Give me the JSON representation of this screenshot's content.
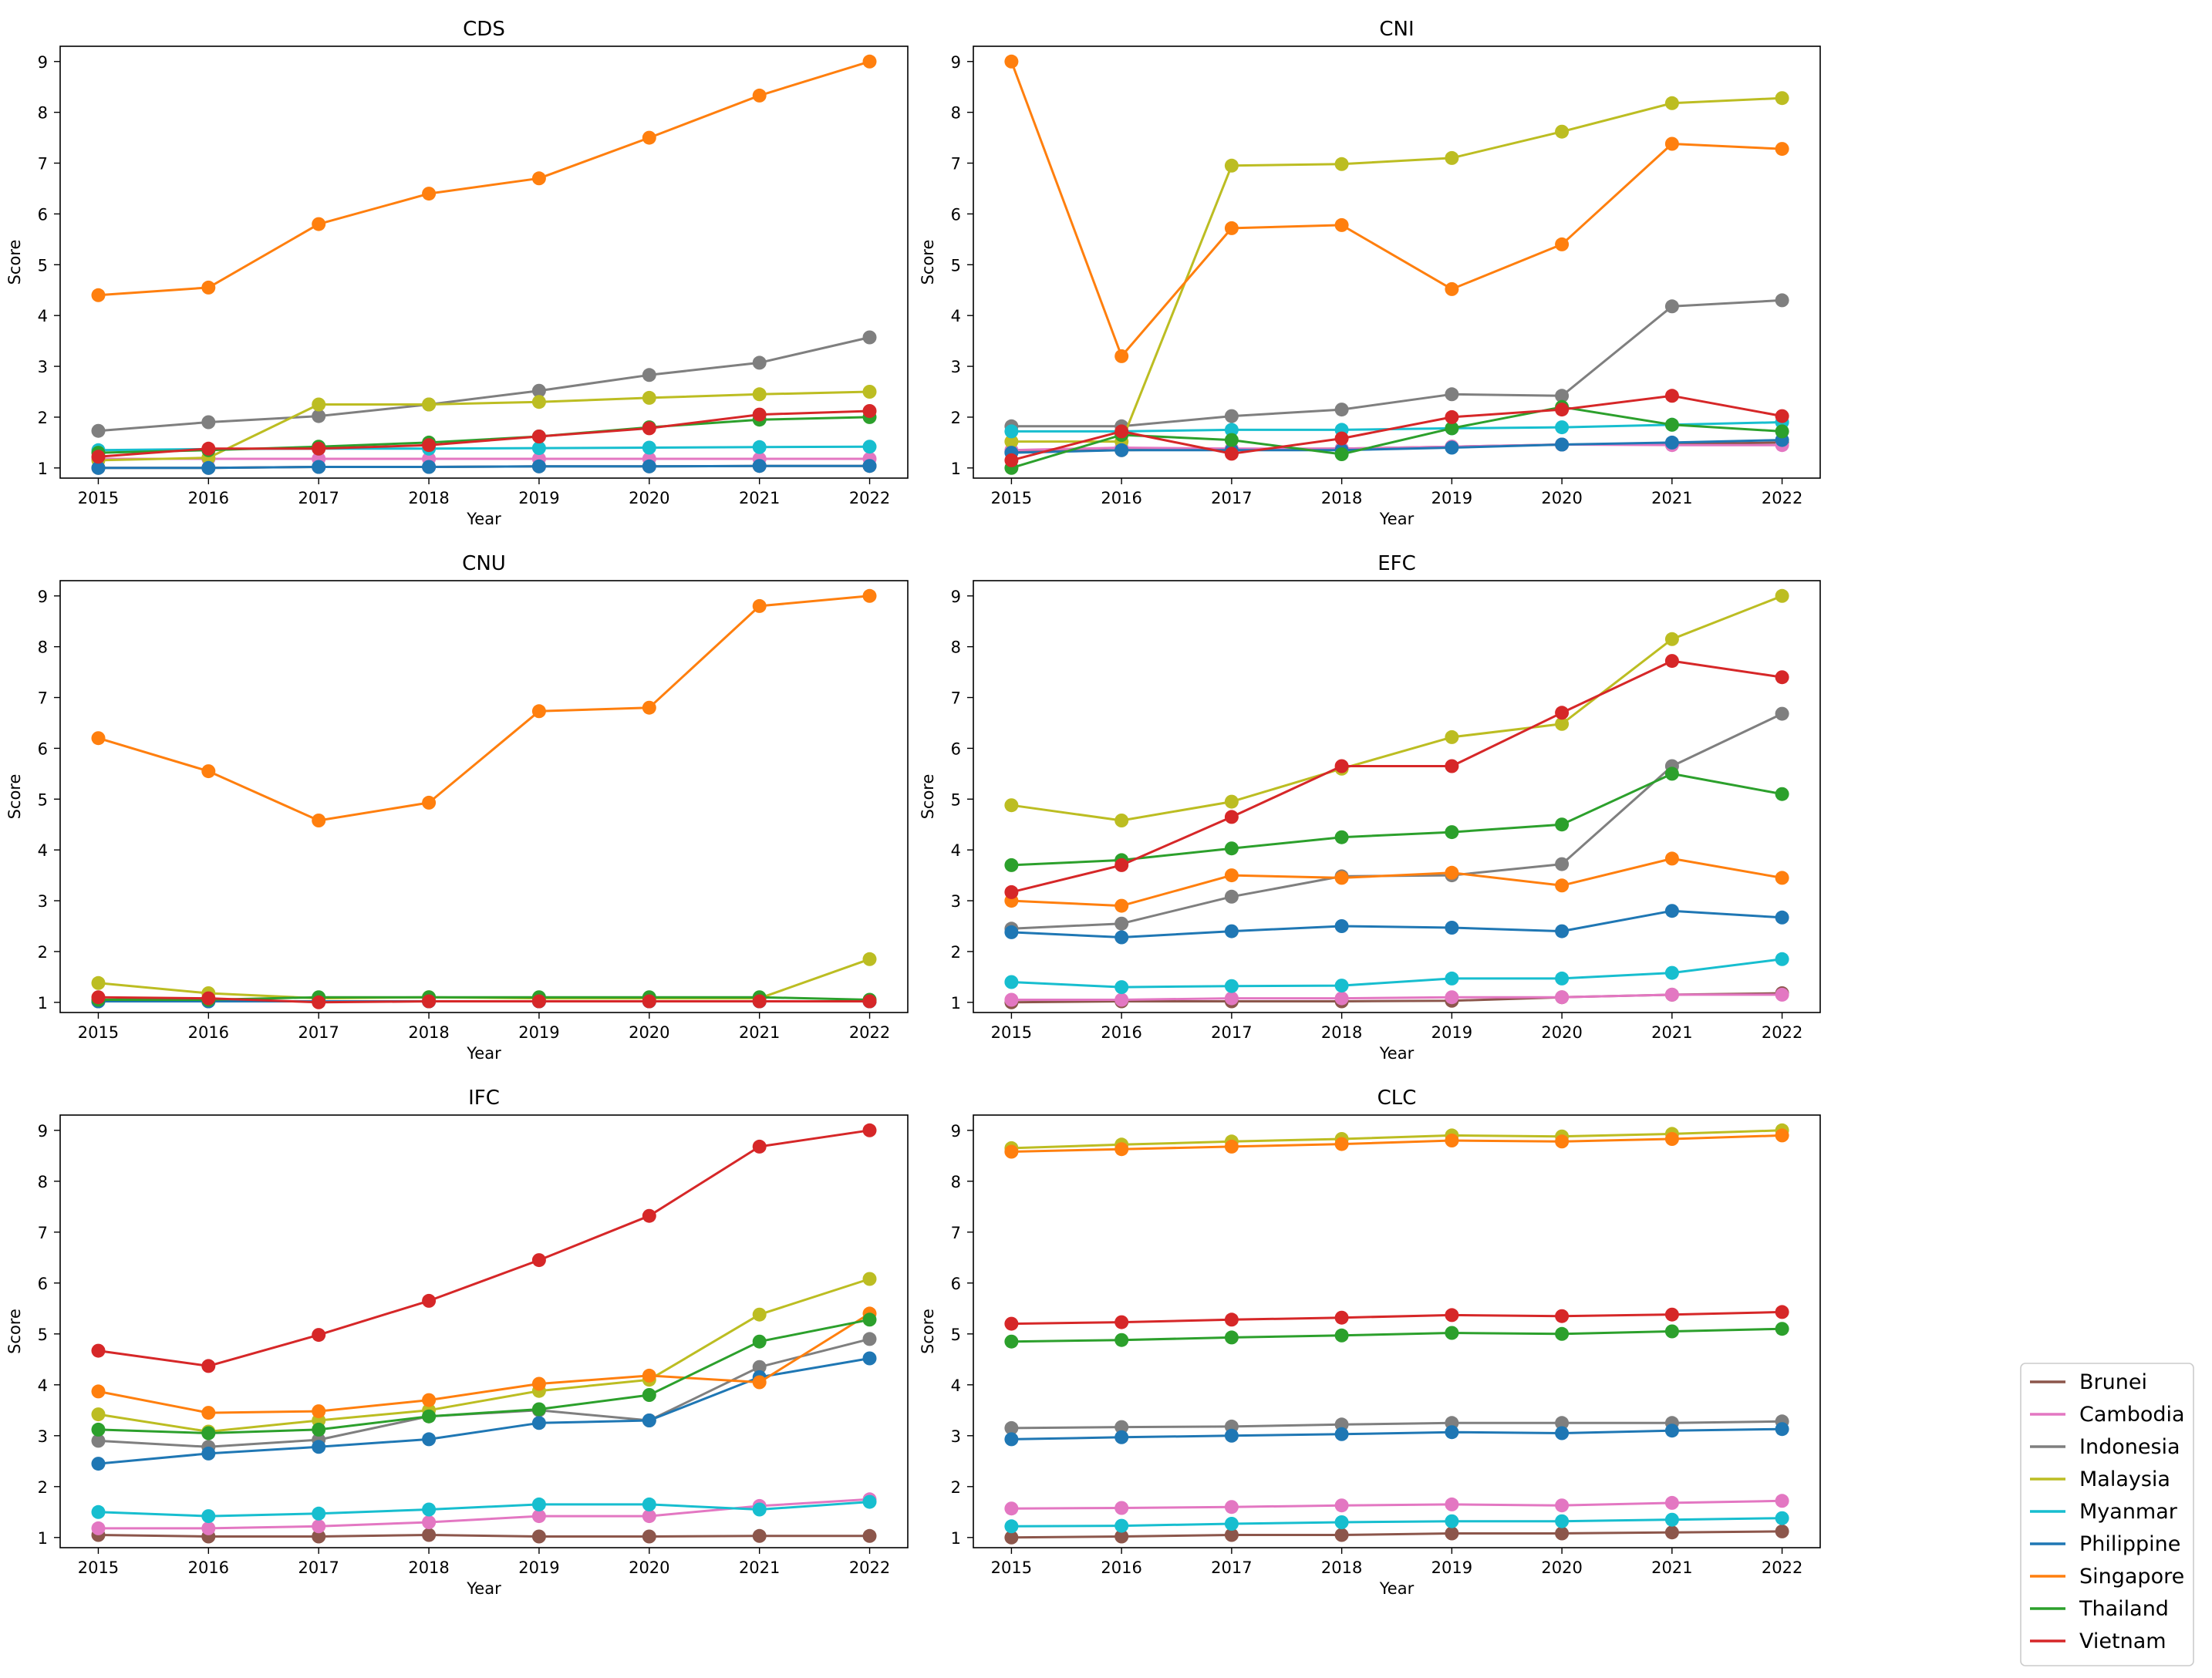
{
  "colors": {
    "Brunei": "#8c564b",
    "Cambodia": "#e377c2",
    "Indonesia": "#7f7f7f",
    "Malaysia": "#bcbd22",
    "Myanmar": "#17becf",
    "Philippine": "#1f77b4",
    "Singapore": "#ff7f0e",
    "Thailand": "#2ca02c",
    "Vietnam": "#d62728"
  },
  "legend": [
    "Brunei",
    "Cambodia",
    "Indonesia",
    "Malaysia",
    "Myanmar",
    "Philippine",
    "Singapore",
    "Thailand",
    "Vietnam"
  ],
  "chart_data": [
    {
      "type": "line",
      "title": "CDS",
      "xlabel": "Year",
      "ylabel": "Score",
      "x": [
        2015,
        2016,
        2017,
        2018,
        2019,
        2020,
        2021,
        2022
      ],
      "ylim": [
        0.8,
        9.3
      ],
      "yticks": [
        1,
        2,
        3,
        4,
        5,
        6,
        7,
        8,
        9
      ],
      "series": [
        {
          "name": "Brunei",
          "values": [
            1.0,
            1.0,
            1.02,
            1.02,
            1.03,
            1.03,
            1.04,
            1.04
          ]
        },
        {
          "name": "Cambodia",
          "values": [
            1.18,
            1.18,
            1.18,
            1.18,
            1.18,
            1.18,
            1.18,
            1.18
          ]
        },
        {
          "name": "Indonesia",
          "values": [
            1.73,
            1.9,
            2.02,
            2.25,
            2.52,
            2.83,
            3.07,
            3.57
          ]
        },
        {
          "name": "Malaysia",
          "values": [
            1.15,
            1.2,
            2.25,
            2.25,
            2.3,
            2.38,
            2.45,
            2.5
          ]
        },
        {
          "name": "Myanmar",
          "values": [
            1.35,
            1.37,
            1.38,
            1.38,
            1.39,
            1.4,
            1.41,
            1.42
          ]
        },
        {
          "name": "Philippine",
          "values": [
            1.0,
            1.0,
            1.02,
            1.02,
            1.03,
            1.03,
            1.04,
            1.04
          ]
        },
        {
          "name": "Singapore",
          "values": [
            4.4,
            4.55,
            5.8,
            6.4,
            6.7,
            7.5,
            8.33,
            9.0
          ]
        },
        {
          "name": "Thailand",
          "values": [
            1.3,
            1.35,
            1.42,
            1.5,
            1.62,
            1.8,
            1.95,
            2.0
          ]
        },
        {
          "name": "Vietnam",
          "values": [
            1.22,
            1.38,
            1.38,
            1.45,
            1.62,
            1.78,
            2.05,
            2.12
          ]
        }
      ]
    },
    {
      "type": "line",
      "title": "CNI",
      "xlabel": "Year",
      "ylabel": "Score",
      "x": [
        2015,
        2016,
        2017,
        2018,
        2019,
        2020,
        2021,
        2022
      ],
      "ylim": [
        0.8,
        9.3
      ],
      "yticks": [
        1,
        2,
        3,
        4,
        5,
        6,
        7,
        8,
        9
      ],
      "series": [
        {
          "name": "Brunei",
          "values": [
            1.32,
            1.35,
            1.37,
            1.38,
            1.42,
            1.46,
            1.47,
            1.5
          ]
        },
        {
          "name": "Cambodia",
          "values": [
            1.35,
            1.4,
            1.38,
            1.38,
            1.42,
            1.46,
            1.45,
            1.45
          ]
        },
        {
          "name": "Indonesia",
          "values": [
            1.82,
            1.82,
            2.02,
            2.15,
            2.45,
            2.42,
            4.18,
            4.3
          ]
        },
        {
          "name": "Malaysia",
          "values": [
            1.52,
            1.52,
            6.95,
            6.98,
            7.1,
            7.62,
            8.18,
            8.28
          ]
        },
        {
          "name": "Myanmar",
          "values": [
            1.72,
            1.72,
            1.75,
            1.75,
            1.78,
            1.8,
            1.85,
            1.9
          ]
        },
        {
          "name": "Philippine",
          "values": [
            1.3,
            1.35,
            1.35,
            1.35,
            1.4,
            1.46,
            1.5,
            1.55
          ]
        },
        {
          "name": "Singapore",
          "values": [
            9.0,
            3.2,
            5.72,
            5.78,
            4.52,
            5.4,
            7.38,
            7.28
          ]
        },
        {
          "name": "Thailand",
          "values": [
            1.0,
            1.65,
            1.55,
            1.27,
            1.78,
            2.2,
            1.85,
            1.72
          ]
        },
        {
          "name": "Vietnam",
          "values": [
            1.15,
            1.72,
            1.28,
            1.58,
            2.0,
            2.15,
            2.42,
            2.02
          ]
        }
      ]
    },
    {
      "type": "line",
      "title": "CNU",
      "xlabel": "Year",
      "ylabel": "Score",
      "x": [
        2015,
        2016,
        2017,
        2018,
        2019,
        2020,
        2021,
        2022
      ],
      "ylim": [
        0.8,
        9.3
      ],
      "yticks": [
        1,
        2,
        3,
        4,
        5,
        6,
        7,
        8,
        9
      ],
      "series": [
        {
          "name": "Brunei",
          "values": [
            1.02,
            1.02,
            1.02,
            1.02,
            1.02,
            1.02,
            1.02,
            1.02
          ]
        },
        {
          "name": "Cambodia",
          "values": [
            1.02,
            1.02,
            1.02,
            1.02,
            1.02,
            1.02,
            1.02,
            1.02
          ]
        },
        {
          "name": "Indonesia",
          "values": [
            1.02,
            1.02,
            1.02,
            1.02,
            1.02,
            1.02,
            1.02,
            1.02
          ]
        },
        {
          "name": "Malaysia",
          "values": [
            1.38,
            1.18,
            1.08,
            1.1,
            1.08,
            1.08,
            1.08,
            1.85
          ]
        },
        {
          "name": "Myanmar",
          "values": [
            1.02,
            1.02,
            1.02,
            1.02,
            1.02,
            1.02,
            1.02,
            1.02
          ]
        },
        {
          "name": "Philippine",
          "values": [
            1.02,
            1.02,
            1.02,
            1.02,
            1.02,
            1.02,
            1.02,
            1.02
          ]
        },
        {
          "name": "Singapore",
          "values": [
            6.2,
            5.55,
            4.58,
            4.93,
            6.73,
            6.8,
            8.8,
            9.0
          ]
        },
        {
          "name": "Thailand",
          "values": [
            1.05,
            1.05,
            1.1,
            1.1,
            1.1,
            1.1,
            1.1,
            1.05
          ]
        },
        {
          "name": "Vietnam",
          "values": [
            1.1,
            1.08,
            1.0,
            1.02,
            1.02,
            1.02,
            1.02,
            1.02
          ]
        }
      ]
    },
    {
      "type": "line",
      "title": "EFC",
      "xlabel": "Year",
      "ylabel": "Score",
      "x": [
        2015,
        2016,
        2017,
        2018,
        2019,
        2020,
        2021,
        2022
      ],
      "ylim": [
        0.8,
        9.3
      ],
      "yticks": [
        1,
        2,
        3,
        4,
        5,
        6,
        7,
        8,
        9
      ],
      "series": [
        {
          "name": "Brunei",
          "values": [
            1.0,
            1.02,
            1.02,
            1.02,
            1.03,
            1.1,
            1.15,
            1.18
          ]
        },
        {
          "name": "Cambodia",
          "values": [
            1.05,
            1.05,
            1.08,
            1.08,
            1.1,
            1.1,
            1.15,
            1.15
          ]
        },
        {
          "name": "Indonesia",
          "values": [
            2.45,
            2.55,
            3.08,
            3.48,
            3.5,
            3.72,
            5.65,
            6.68
          ]
        },
        {
          "name": "Malaysia",
          "values": [
            4.88,
            4.58,
            4.95,
            5.6,
            6.22,
            6.48,
            8.15,
            9.0
          ]
        },
        {
          "name": "Myanmar",
          "values": [
            1.4,
            1.3,
            1.32,
            1.33,
            1.47,
            1.47,
            1.58,
            1.85
          ]
        },
        {
          "name": "Philippine",
          "values": [
            2.38,
            2.28,
            2.4,
            2.5,
            2.47,
            2.4,
            2.8,
            2.67
          ]
        },
        {
          "name": "Singapore",
          "values": [
            3.0,
            2.9,
            3.5,
            3.45,
            3.55,
            3.3,
            3.83,
            3.45
          ]
        },
        {
          "name": "Thailand",
          "values": [
            3.7,
            3.8,
            4.03,
            4.25,
            4.35,
            4.5,
            5.5,
            5.1
          ]
        },
        {
          "name": "Vietnam",
          "values": [
            3.17,
            3.7,
            4.65,
            5.65,
            5.65,
            6.7,
            7.72,
            7.4
          ]
        }
      ]
    },
    {
      "type": "line",
      "title": "IFC",
      "xlabel": "Year",
      "ylabel": "Score",
      "x": [
        2015,
        2016,
        2017,
        2018,
        2019,
        2020,
        2021,
        2022
      ],
      "ylim": [
        0.8,
        9.3
      ],
      "yticks": [
        1,
        2,
        3,
        4,
        5,
        6,
        7,
        8,
        9
      ],
      "series": [
        {
          "name": "Brunei",
          "values": [
            1.05,
            1.02,
            1.02,
            1.05,
            1.02,
            1.02,
            1.03,
            1.03
          ]
        },
        {
          "name": "Cambodia",
          "values": [
            1.18,
            1.18,
            1.22,
            1.3,
            1.42,
            1.42,
            1.62,
            1.75
          ]
        },
        {
          "name": "Indonesia",
          "values": [
            2.9,
            2.78,
            2.92,
            3.38,
            3.5,
            3.3,
            4.35,
            4.9
          ]
        },
        {
          "name": "Malaysia",
          "values": [
            3.42,
            3.08,
            3.3,
            3.5,
            3.88,
            4.1,
            5.38,
            6.08
          ]
        },
        {
          "name": "Myanmar",
          "values": [
            1.5,
            1.42,
            1.47,
            1.55,
            1.65,
            1.65,
            1.55,
            1.7
          ]
        },
        {
          "name": "Philippine",
          "values": [
            2.45,
            2.65,
            2.78,
            2.93,
            3.25,
            3.3,
            4.15,
            4.52
          ]
        },
        {
          "name": "Singapore",
          "values": [
            3.87,
            3.45,
            3.48,
            3.7,
            4.02,
            4.18,
            4.05,
            5.4
          ]
        },
        {
          "name": "Thailand",
          "values": [
            3.12,
            3.05,
            3.12,
            3.38,
            3.52,
            3.8,
            4.85,
            5.28
          ]
        },
        {
          "name": "Vietnam",
          "values": [
            4.67,
            4.37,
            4.98,
            5.65,
            6.45,
            7.32,
            8.68,
            9.0
          ]
        }
      ]
    },
    {
      "type": "line",
      "title": "CLC",
      "xlabel": "Year",
      "ylabel": "Score",
      "x": [
        2015,
        2016,
        2017,
        2018,
        2019,
        2020,
        2021,
        2022
      ],
      "ylim": [
        0.8,
        9.3
      ],
      "yticks": [
        1,
        2,
        3,
        4,
        5,
        6,
        7,
        8,
        9
      ],
      "series": [
        {
          "name": "Brunei",
          "values": [
            1.0,
            1.02,
            1.05,
            1.05,
            1.08,
            1.08,
            1.1,
            1.12
          ]
        },
        {
          "name": "Cambodia",
          "values": [
            1.57,
            1.58,
            1.6,
            1.63,
            1.65,
            1.63,
            1.68,
            1.72
          ]
        },
        {
          "name": "Indonesia",
          "values": [
            3.15,
            3.17,
            3.18,
            3.22,
            3.25,
            3.25,
            3.25,
            3.28
          ]
        },
        {
          "name": "Malaysia",
          "values": [
            8.65,
            8.72,
            8.78,
            8.83,
            8.9,
            8.88,
            8.93,
            9.0
          ]
        },
        {
          "name": "Myanmar",
          "values": [
            1.22,
            1.23,
            1.27,
            1.3,
            1.32,
            1.32,
            1.35,
            1.38
          ]
        },
        {
          "name": "Philippine",
          "values": [
            2.93,
            2.97,
            3.0,
            3.03,
            3.07,
            3.05,
            3.1,
            3.13
          ]
        },
        {
          "name": "Singapore",
          "values": [
            8.58,
            8.63,
            8.68,
            8.73,
            8.8,
            8.78,
            8.83,
            8.9
          ]
        },
        {
          "name": "Thailand",
          "values": [
            4.85,
            4.88,
            4.93,
            4.97,
            5.02,
            5.0,
            5.05,
            5.1
          ]
        },
        {
          "name": "Vietnam",
          "values": [
            5.2,
            5.23,
            5.28,
            5.32,
            5.37,
            5.35,
            5.38,
            5.43
          ]
        }
      ]
    }
  ]
}
